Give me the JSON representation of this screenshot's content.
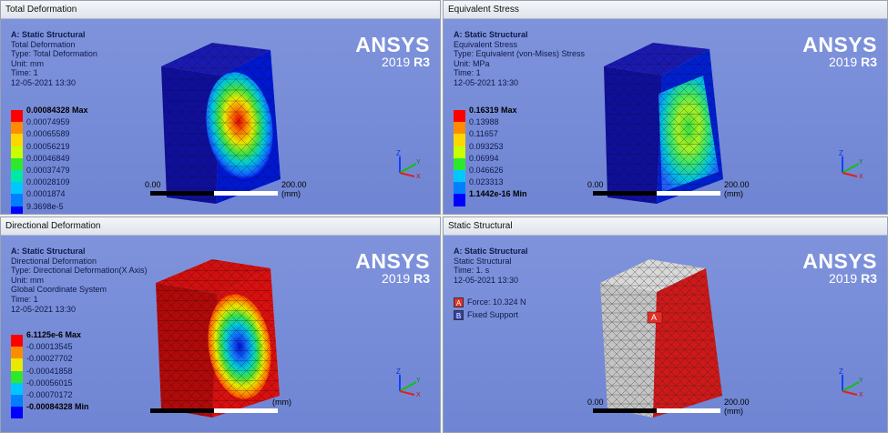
{
  "colors": {
    "viewport_bg": "#7a8fd8",
    "legend": [
      "#ff0000",
      "#ff8c00",
      "#ffd700",
      "#c8ff00",
      "#2ee82e",
      "#00e8a8",
      "#00c8ff",
      "#0080ff",
      "#0000ff"
    ],
    "force_marker": "#e0302a",
    "support_marker": "#3040b0"
  },
  "brand": {
    "name": "ANSYS",
    "version_num": "2019",
    "version_rel": "R3"
  },
  "panels": [
    {
      "title": "Total Deformation",
      "info": {
        "heading": "A: Static Structural",
        "lines": [
          "Total Deformation",
          "Type: Total Deformation",
          "Unit: mm",
          "Time: 1",
          "12-05-2021 13:30"
        ]
      },
      "legend": [
        "0.00084328 Max",
        "0.00074959",
        "0.00065589",
        "0.00056219",
        "0.00046849",
        "0.00037479",
        "0.00028109",
        "0.0001874",
        "9.3698e-5"
      ],
      "scale": {
        "start": "0.00",
        "end": "200.00 (mm)"
      }
    },
    {
      "title": "Equivalent Stress",
      "info": {
        "heading": "A: Static Structural",
        "lines": [
          "Equivalent Stress",
          "Type: Equivalent (von-Mises) Stress",
          "Unit: MPa",
          "Time: 1",
          "12-05-2021 13:30"
        ]
      },
      "legend": [
        "0.16319 Max",
        "0.13988",
        "0.11657",
        "0.093253",
        "0.06994",
        "0.046626",
        "0.023313",
        "1.1442e-16 Min"
      ],
      "scale": {
        "start": "0.00",
        "end": "200.00 (mm)"
      }
    },
    {
      "title": "Directional Deformation",
      "info": {
        "heading": "A: Static Structural",
        "lines": [
          "Directional Deformation",
          "Type: Directional Deformation(X Axis)",
          "Unit: mm",
          "Global Coordinate System",
          "Time: 1",
          "12-05-2021 13:30"
        ]
      },
      "legend": [
        "6.1125e-6 Max",
        "-0.00013545",
        "-0.00027702",
        "-0.00041858",
        "-0.00056015",
        "-0.00070172",
        "-0.00084328 Min"
      ],
      "scale": {
        "start": "",
        "end": "(mm)"
      }
    },
    {
      "title": "Static Structural",
      "info": {
        "heading": "A: Static Structural",
        "lines": [
          "Static Structural",
          "Time: 1. s",
          "12-05-2021 13:30"
        ]
      },
      "bcs": [
        {
          "tag": "A",
          "label": "Force: 10.324 N"
        },
        {
          "tag": "B",
          "label": "Fixed Support"
        }
      ],
      "force_tag": "A",
      "scale": {
        "start": "0.00",
        "end": "200.00 (mm)"
      }
    }
  ],
  "triad": {
    "z": "Z",
    "y": "Y",
    "x": "X"
  }
}
